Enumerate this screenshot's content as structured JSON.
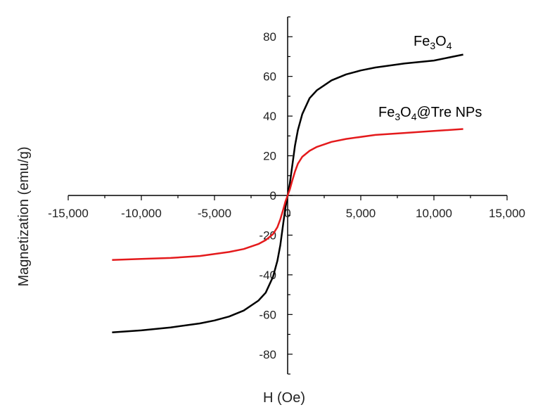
{
  "chart_data": {
    "type": "line",
    "xlabel": "H (Oe)",
    "ylabel": "Magnetization (emu/g)",
    "xlim": [
      -15000,
      15000
    ],
    "ylim": [
      -90,
      90
    ],
    "xticks": [
      -15000,
      -10000,
      -5000,
      0,
      5000,
      10000,
      15000
    ],
    "xtick_labels": [
      "-15,000",
      "-10,000",
      "-5,000",
      "0",
      "5,000",
      "10,000",
      "15,000"
    ],
    "yticks": [
      -80,
      -60,
      -40,
      -20,
      0,
      20,
      40,
      60,
      80
    ],
    "ytick_labels": [
      "-80",
      "-60",
      "-40",
      "-20",
      "0",
      "20",
      "40",
      "60",
      "80"
    ],
    "grid": false,
    "legend": "none",
    "series": [
      {
        "name": "Fe3O4",
        "label_parts": [
          {
            "t": "Fe"
          },
          {
            "t": "3",
            "sub": true
          },
          {
            "t": "O"
          },
          {
            "t": "4",
            "sub": true
          }
        ],
        "color": "#000000",
        "x": [
          -12000,
          -10000,
          -8000,
          -6000,
          -5000,
          -4000,
          -3000,
          -2000,
          -1500,
          -1000,
          -700,
          -500,
          -300,
          -150,
          0,
          150,
          300,
          500,
          700,
          1000,
          1500,
          2000,
          3000,
          4000,
          5000,
          6000,
          8000,
          10000,
          12000
        ],
        "y": [
          -69,
          -68,
          -66.5,
          -64.5,
          -63,
          -61,
          -58,
          -53,
          -49,
          -41,
          -33,
          -25,
          -14,
          -6,
          0,
          6,
          14,
          25,
          33,
          41,
          49,
          53,
          58,
          61,
          63,
          64.5,
          66.5,
          68,
          71
        ]
      },
      {
        "name": "Fe3O4@Tre NPs",
        "label_parts": [
          {
            "t": "Fe"
          },
          {
            "t": "3",
            "sub": true
          },
          {
            "t": "O"
          },
          {
            "t": "4",
            "sub": true
          },
          {
            "t": "@Tre NPs"
          }
        ],
        "color": "#e41a1c",
        "x": [
          -12000,
          -10000,
          -8000,
          -6000,
          -4000,
          -3000,
          -2000,
          -1500,
          -1000,
          -700,
          -500,
          -300,
          -150,
          0,
          150,
          300,
          500,
          700,
          1000,
          1500,
          2000,
          3000,
          4000,
          6000,
          8000,
          10000,
          12000
        ],
        "y": [
          -32.5,
          -32,
          -31.5,
          -30.5,
          -28.5,
          -27,
          -24.5,
          -22.5,
          -19.5,
          -16,
          -12,
          -7,
          -3,
          0,
          3,
          7,
          12,
          16,
          19.5,
          22.5,
          24.5,
          27,
          28.5,
          30.5,
          31.5,
          32.5,
          33.5
        ]
      }
    ]
  }
}
